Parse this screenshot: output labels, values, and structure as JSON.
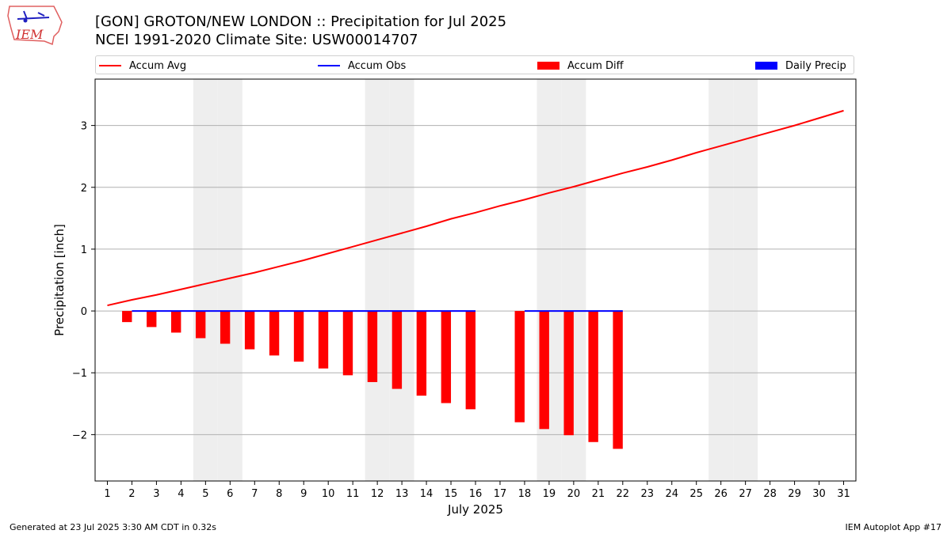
{
  "header": {
    "title_line1": "[GON] GROTON/NEW LONDON :: Precipitation for Jul 2025",
    "title_line2": "NCEI 1991-2020 Climate Site: USW00014707",
    "logo_text": "IEM"
  },
  "legend": {
    "items": [
      {
        "label": "Accum Avg",
        "color": "#ff0000",
        "kind": "line"
      },
      {
        "label": "Accum Obs",
        "color": "#0000ff",
        "kind": "line"
      },
      {
        "label": "Accum Diff",
        "color": "#ff0000",
        "kind": "bar"
      },
      {
        "label": "Daily Precip",
        "color": "#0000ff",
        "kind": "bar"
      }
    ]
  },
  "footer": {
    "left": "Generated at 23 Jul 2025 3:30 AM CDT in 0.32s",
    "right": "IEM Autoplot App #17"
  },
  "chart_data": {
    "type": "line",
    "xlabel": "July 2025",
    "ylabel": "Precipitation [inch]",
    "xlim": [
      0.5,
      31.5
    ],
    "ylim": [
      -2.75,
      3.75
    ],
    "yticks": [
      -2,
      -1,
      0,
      1,
      2,
      3
    ],
    "x": [
      1,
      2,
      3,
      4,
      5,
      6,
      7,
      8,
      9,
      10,
      11,
      12,
      13,
      14,
      15,
      16,
      17,
      18,
      19,
      20,
      21,
      22,
      23,
      24,
      25,
      26,
      27,
      28,
      29,
      30,
      31
    ],
    "weekend_days": [
      5,
      6,
      12,
      13,
      19,
      20,
      26,
      27
    ],
    "grid": "horizontal",
    "legend_position": "top",
    "series": [
      {
        "name": "Accum Avg",
        "color": "#ff0000",
        "values": [
          0.09,
          0.18,
          0.26,
          0.35,
          0.44,
          0.53,
          0.62,
          0.72,
          0.82,
          0.93,
          1.04,
          1.15,
          1.26,
          1.37,
          1.49,
          1.59,
          1.7,
          1.8,
          1.91,
          2.01,
          2.12,
          2.23,
          2.33,
          2.44,
          2.56,
          2.67,
          2.78,
          2.89,
          3.0,
          3.12,
          3.24
        ]
      },
      {
        "name": "Accum Obs",
        "color": "#0000ff",
        "segments": [
          {
            "x_start": 2,
            "x_end": 16,
            "value": 0.0
          },
          {
            "x_start": 18,
            "x_end": 22,
            "value": 0.0
          }
        ]
      },
      {
        "name": "Accum Diff",
        "color": "#ff0000",
        "x": [
          2,
          3,
          4,
          5,
          6,
          7,
          8,
          9,
          10,
          11,
          12,
          13,
          14,
          15,
          16,
          18,
          19,
          20,
          21,
          22
        ],
        "values": [
          -0.18,
          -0.26,
          -0.35,
          -0.44,
          -0.53,
          -0.62,
          -0.72,
          -0.82,
          -0.93,
          -1.04,
          -1.15,
          -1.26,
          -1.37,
          -1.49,
          -1.59,
          -1.8,
          -1.91,
          -2.01,
          -2.12,
          -2.23
        ]
      },
      {
        "name": "Daily Precip",
        "color": "#0000ff",
        "x": [
          2,
          3,
          4,
          5,
          6,
          7,
          8,
          9,
          10,
          11,
          12,
          13,
          14,
          15,
          16,
          18,
          19,
          20,
          21,
          22
        ],
        "values": [
          0,
          0,
          0,
          0,
          0,
          0,
          0,
          0,
          0,
          0,
          0,
          0,
          0,
          0,
          0,
          0,
          0,
          0,
          0,
          0
        ]
      }
    ]
  }
}
